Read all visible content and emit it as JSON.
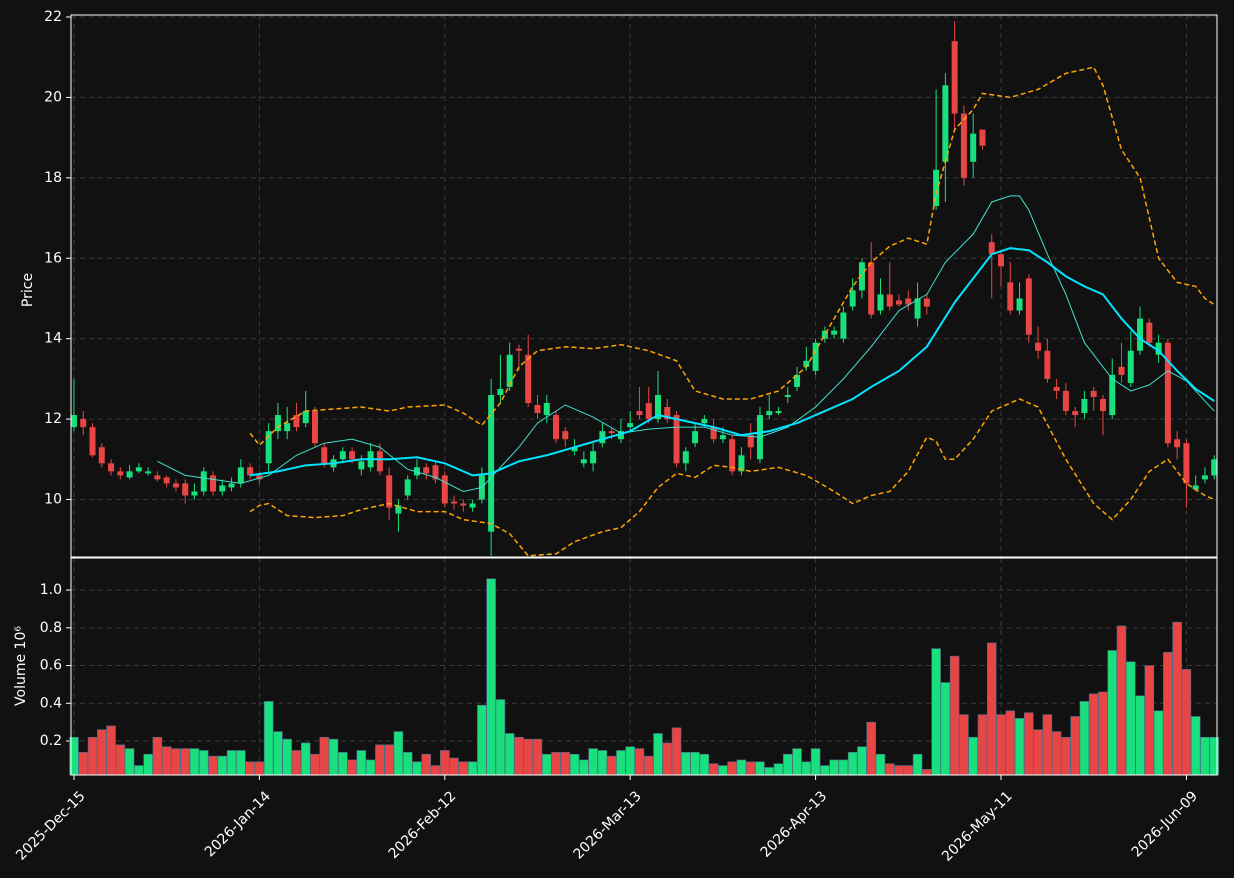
{
  "chart_data": [
    {
      "type": "candlestick",
      "ylabel": "Price",
      "ylim": [
        8.57,
        22.05
      ],
      "yticks": [
        10,
        12,
        14,
        16,
        18,
        20,
        22
      ],
      "xlim": [
        -0.32,
        123.3
      ],
      "grid": true,
      "up_color": "#19e07c",
      "down_color": "#e84545",
      "open": [
        11.8,
        12.0,
        11.8,
        11.3,
        10.9,
        10.7,
        10.55,
        10.7,
        10.65,
        10.6,
        10.55,
        10.4,
        10.4,
        10.1,
        10.2,
        10.6,
        10.2,
        10.3,
        10.4,
        10.8,
        10.6,
        10.9,
        11.7,
        11.7,
        12.1,
        11.9,
        12.2,
        11.3,
        10.8,
        11.0,
        11.2,
        10.75,
        10.8,
        11.2,
        10.6,
        9.65,
        10.1,
        10.6,
        10.8,
        10.85,
        10.6,
        9.95,
        9.9,
        9.8,
        10.0,
        9.2,
        12.6,
        12.8,
        13.75,
        13.6,
        12.35,
        12.1,
        12.1,
        11.7,
        11.2,
        10.9,
        10.9,
        11.4,
        11.7,
        11.5,
        11.8,
        12.2,
        12.4,
        12.0,
        12.3,
        12.1,
        10.9,
        11.4,
        11.9,
        11.8,
        11.5,
        11.5,
        10.7,
        11.6,
        11.0,
        12.1,
        12.15,
        12.55,
        12.8,
        13.3,
        13.2,
        14.0,
        14.1,
        14.0,
        14.8,
        15.2,
        15.9,
        14.7,
        15.1,
        14.95,
        15.0,
        14.5,
        15.0,
        17.3,
        18.4,
        21.4,
        19.6,
        18.4,
        19.2,
        16.4,
        16.1,
        15.4,
        14.7,
        15.5,
        13.9,
        13.7,
        12.8,
        12.7,
        12.2,
        12.15,
        12.7,
        12.5,
        12.1,
        13.3,
        12.9,
        13.7,
        14.4,
        13.6,
        13.9,
        11.5,
        11.4,
        10.25,
        10.5,
        10.6
      ],
      "high": [
        13.0,
        12.2,
        11.9,
        11.4,
        11.0,
        10.8,
        10.85,
        10.9,
        10.8,
        10.7,
        10.6,
        10.5,
        10.5,
        10.4,
        10.8,
        10.7,
        10.5,
        10.55,
        11.0,
        10.9,
        10.7,
        11.9,
        12.4,
        12.3,
        12.4,
        12.7,
        12.3,
        11.4,
        11.1,
        11.3,
        11.3,
        11.1,
        11.4,
        11.4,
        10.8,
        10.0,
        10.6,
        11.0,
        10.9,
        10.95,
        10.7,
        10.1,
        10.0,
        10.0,
        10.8,
        13.0,
        13.6,
        13.9,
        13.85,
        14.1,
        12.6,
        12.6,
        12.2,
        11.8,
        11.5,
        11.2,
        11.4,
        11.9,
        11.8,
        12.0,
        12.2,
        12.8,
        12.8,
        13.2,
        12.5,
        12.2,
        11.3,
        11.9,
        12.1,
        12.0,
        11.8,
        11.6,
        11.3,
        11.9,
        12.3,
        12.6,
        12.3,
        12.8,
        13.3,
        13.8,
        14.0,
        14.3,
        14.3,
        14.8,
        15.5,
        16.0,
        16.4,
        15.5,
        15.9,
        15.1,
        15.2,
        15.4,
        15.1,
        20.2,
        20.6,
        21.9,
        19.8,
        19.6,
        19.2,
        16.6,
        16.2,
        15.9,
        15.4,
        15.6,
        14.3,
        14.0,
        13.0,
        12.9,
        12.3,
        12.7,
        12.8,
        12.6,
        13.5,
        13.9,
        14.2,
        14.8,
        14.5,
        14.1,
        14.0,
        11.7,
        11.5,
        10.6,
        10.8,
        11.1
      ],
      "low": [
        11.7,
        11.6,
        11.05,
        10.8,
        10.6,
        10.5,
        10.5,
        10.65,
        10.6,
        10.45,
        10.3,
        10.2,
        9.9,
        10.0,
        10.1,
        10.1,
        10.1,
        10.2,
        10.3,
        10.5,
        10.4,
        10.7,
        11.5,
        11.5,
        11.7,
        11.8,
        11.3,
        10.8,
        10.7,
        10.9,
        10.9,
        10.6,
        10.7,
        10.6,
        9.5,
        9.2,
        10.0,
        10.5,
        10.5,
        10.4,
        9.8,
        9.75,
        9.7,
        9.7,
        9.9,
        8.6,
        12.4,
        12.7,
        13.2,
        12.3,
        12.0,
        11.9,
        11.4,
        11.3,
        11.1,
        10.8,
        10.7,
        11.3,
        11.5,
        11.4,
        11.7,
        12.0,
        11.9,
        11.9,
        11.9,
        10.8,
        10.7,
        11.3,
        11.8,
        11.4,
        11.4,
        10.6,
        10.6,
        11.0,
        10.9,
        12.0,
        12.1,
        12.4,
        12.7,
        13.2,
        13.1,
        13.9,
        14.0,
        13.9,
        14.7,
        15.0,
        14.5,
        14.6,
        14.7,
        14.8,
        14.7,
        14.3,
        14.6,
        17.2,
        17.4,
        19.2,
        17.8,
        18.0,
        18.7,
        15.0,
        15.3,
        14.6,
        14.6,
        13.9,
        13.5,
        12.9,
        12.5,
        12.1,
        11.8,
        12.0,
        12.2,
        11.6,
        12.0,
        12.9,
        12.8,
        13.6,
        13.8,
        13.4,
        11.3,
        11.0,
        9.8,
        10.2,
        10.4,
        10.5
      ],
      "close": [
        12.1,
        11.8,
        11.1,
        10.9,
        10.7,
        10.6,
        10.7,
        10.8,
        10.7,
        10.5,
        10.4,
        10.3,
        10.1,
        10.2,
        10.7,
        10.2,
        10.35,
        10.4,
        10.8,
        10.6,
        10.5,
        11.7,
        12.1,
        11.9,
        11.8,
        12.2,
        11.4,
        10.9,
        11.0,
        11.2,
        11.0,
        10.95,
        11.2,
        10.7,
        9.8,
        9.85,
        10.5,
        10.8,
        10.65,
        10.5,
        9.9,
        9.9,
        9.85,
        9.9,
        10.6,
        12.6,
        12.75,
        13.6,
        13.7,
        12.4,
        12.15,
        12.4,
        11.5,
        11.5,
        11.3,
        11.0,
        11.2,
        11.7,
        11.65,
        11.7,
        11.9,
        12.1,
        12.0,
        12.6,
        12.0,
        10.9,
        11.2,
        11.7,
        12.0,
        11.5,
        11.6,
        10.7,
        11.1,
        11.3,
        12.1,
        12.2,
        12.2,
        12.6,
        13.1,
        13.45,
        13.9,
        14.2,
        14.2,
        14.65,
        15.2,
        15.9,
        14.6,
        15.1,
        14.8,
        14.85,
        14.85,
        15.0,
        14.8,
        18.2,
        20.3,
        19.6,
        18.0,
        19.1,
        18.8,
        16.1,
        15.8,
        14.7,
        15.0,
        14.1,
        13.7,
        13.0,
        12.7,
        12.2,
        12.1,
        12.5,
        12.55,
        12.2,
        13.1,
        13.1,
        13.7,
        14.5,
        13.9,
        13.9,
        11.4,
        11.3,
        10.4,
        10.35,
        10.6,
        11.0
      ],
      "lines": [
        {
          "color": "#40e0d0",
          "width": 1,
          "dashed": false,
          "x": [
            9,
            12,
            15,
            18,
            21,
            24,
            27,
            30,
            33,
            36,
            39,
            42,
            44,
            46,
            48,
            50,
            53,
            56,
            59,
            62,
            65,
            68,
            71,
            74,
            77,
            80,
            83,
            86,
            89,
            92,
            94,
            97,
            99,
            101,
            102,
            103,
            105,
            107,
            109,
            112,
            114,
            116,
            118,
            120,
            123
          ],
          "values": [
            10.95,
            10.6,
            10.5,
            10.4,
            10.6,
            11.1,
            11.4,
            11.5,
            11.3,
            10.75,
            10.55,
            10.2,
            10.3,
            10.8,
            11.3,
            11.9,
            12.35,
            12.05,
            11.65,
            11.75,
            11.8,
            11.8,
            11.6,
            11.55,
            11.8,
            12.3,
            13.0,
            13.8,
            14.7,
            15.1,
            15.9,
            16.6,
            17.4,
            17.55,
            17.55,
            17.2,
            16.1,
            15.1,
            13.9,
            13.0,
            12.7,
            12.85,
            13.2,
            12.95,
            12.2
          ]
        },
        {
          "color": "#00e5ff",
          "width": 2,
          "dashed": false,
          "x": [
            19,
            22,
            25,
            28,
            31,
            34,
            37,
            40,
            43,
            45,
            48,
            51,
            54,
            57,
            60,
            63,
            66,
            69,
            72,
            75,
            78,
            81,
            84,
            86,
            89,
            92,
            95,
            97,
            99,
            101,
            103,
            105,
            107,
            109,
            111,
            113,
            115,
            117,
            119,
            121,
            123
          ],
          "values": [
            10.6,
            10.7,
            10.85,
            10.9,
            11.0,
            11.0,
            11.05,
            10.9,
            10.6,
            10.65,
            10.95,
            11.1,
            11.3,
            11.5,
            11.7,
            12.1,
            11.95,
            11.8,
            11.6,
            11.7,
            11.9,
            12.2,
            12.5,
            12.8,
            13.2,
            13.8,
            14.9,
            15.5,
            16.1,
            16.25,
            16.2,
            15.9,
            15.55,
            15.3,
            15.1,
            14.5,
            14.0,
            13.7,
            13.2,
            12.75,
            12.45
          ]
        },
        {
          "color": "#ffa500",
          "width": 1.5,
          "dashed": true,
          "x": [
            19,
            20,
            22,
            25,
            28,
            31,
            34,
            36,
            40,
            42,
            44,
            46,
            48,
            50,
            53,
            56,
            59,
            62,
            65,
            67,
            70,
            73,
            76,
            79,
            82,
            84,
            86,
            88,
            90,
            92,
            93,
            95,
            97,
            98,
            101,
            104,
            107,
            110,
            111,
            113,
            115,
            117,
            119,
            121,
            122,
            123
          ],
          "values": [
            11.65,
            11.35,
            11.8,
            12.2,
            12.25,
            12.3,
            12.2,
            12.3,
            12.35,
            12.15,
            11.85,
            12.4,
            13.3,
            13.7,
            13.8,
            13.75,
            13.85,
            13.7,
            13.45,
            12.7,
            12.5,
            12.5,
            12.7,
            13.3,
            14.5,
            15.3,
            15.9,
            16.3,
            16.5,
            16.35,
            17.6,
            19.2,
            19.7,
            20.1,
            20.0,
            20.2,
            20.6,
            20.75,
            20.3,
            18.7,
            18.0,
            16.0,
            15.4,
            15.3,
            15.0,
            14.85
          ]
        },
        {
          "color": "#ffa500",
          "width": 1.5,
          "dashed": true,
          "x": [
            19,
            20,
            21,
            23,
            26,
            29,
            31,
            34,
            37,
            40,
            42,
            45,
            47,
            49,
            52,
            54,
            57,
            59,
            61,
            63,
            65,
            67,
            69,
            71,
            73,
            76,
            79,
            82,
            84,
            86,
            88,
            90,
            92,
            93,
            94,
            95,
            97,
            99,
            101,
            102,
            104,
            107,
            110,
            112,
            114,
            116,
            118,
            120,
            122,
            123
          ],
          "values": [
            9.7,
            9.85,
            9.9,
            9.6,
            9.55,
            9.6,
            9.75,
            9.9,
            9.7,
            9.7,
            9.5,
            9.4,
            9.15,
            8.6,
            8.65,
            8.95,
            9.2,
            9.3,
            9.7,
            10.3,
            10.65,
            10.55,
            10.85,
            10.8,
            10.7,
            10.8,
            10.6,
            10.2,
            9.9,
            10.1,
            10.2,
            10.7,
            11.55,
            11.45,
            11.0,
            11.0,
            11.5,
            12.2,
            12.4,
            12.5,
            12.3,
            11.0,
            9.9,
            9.5,
            10.0,
            10.7,
            11.0,
            10.4,
            10.1,
            10.0
          ]
        }
      ]
    },
    {
      "type": "bar",
      "ylabel": "Volume  10⁶",
      "ylim": [
        0.02,
        1.17
      ],
      "yticks": [
        0.2,
        0.4,
        0.6,
        0.8,
        {
          "value": 1,
          "label": "1.0"
        }
      ],
      "grid": true,
      "xticks": [
        {
          "value": 0,
          "label": "2025-Dec-15"
        },
        {
          "value": 20,
          "label": "2026-Jan-14"
        },
        {
          "value": 40,
          "label": "2026-Feb-12"
        },
        {
          "value": 60,
          "label": "2026-Mar-13"
        },
        {
          "value": 80,
          "label": "2026-Apr-13"
        },
        {
          "value": 100,
          "label": "2026-May-11"
        },
        {
          "value": 120,
          "label": "2026-Jun-09"
        }
      ],
      "values": [
        0.22,
        0.14,
        0.22,
        0.26,
        0.28,
        0.18,
        0.16,
        0.07,
        0.13,
        0.22,
        0.17,
        0.16,
        0.16,
        0.16,
        0.15,
        0.12,
        0.12,
        0.15,
        0.15,
        0.09,
        0.09,
        0.41,
        0.25,
        0.21,
        0.15,
        0.19,
        0.13,
        0.22,
        0.21,
        0.14,
        0.1,
        0.15,
        0.1,
        0.18,
        0.18,
        0.25,
        0.14,
        0.09,
        0.13,
        0.07,
        0.15,
        0.11,
        0.09,
        0.09,
        0.39,
        1.06,
        0.42,
        0.24,
        0.22,
        0.21,
        0.21,
        0.13,
        0.14,
        0.14,
        0.13,
        0.1,
        0.16,
        0.15,
        0.12,
        0.15,
        0.17,
        0.16,
        0.12,
        0.24,
        0.19,
        0.27,
        0.14,
        0.14,
        0.13,
        0.08,
        0.07,
        0.09,
        0.1,
        0.09,
        0.09,
        0.06,
        0.08,
        0.13,
        0.16,
        0.09,
        0.16,
        0.07,
        0.1,
        0.1,
        0.14,
        0.17,
        0.3,
        0.13,
        0.08,
        0.07,
        0.07,
        0.13,
        0.05,
        0.69,
        0.51,
        0.65,
        0.34,
        0.22,
        0.34,
        0.72,
        0.34,
        0.36,
        0.32,
        0.35,
        0.26,
        0.34,
        0.25,
        0.22,
        0.33,
        0.41,
        0.45,
        0.46,
        0.68,
        0.81,
        0.62,
        0.44,
        0.6,
        0.36,
        0.67,
        0.83,
        0.58,
        0.33,
        0.22,
        0.22
      ]
    }
  ]
}
